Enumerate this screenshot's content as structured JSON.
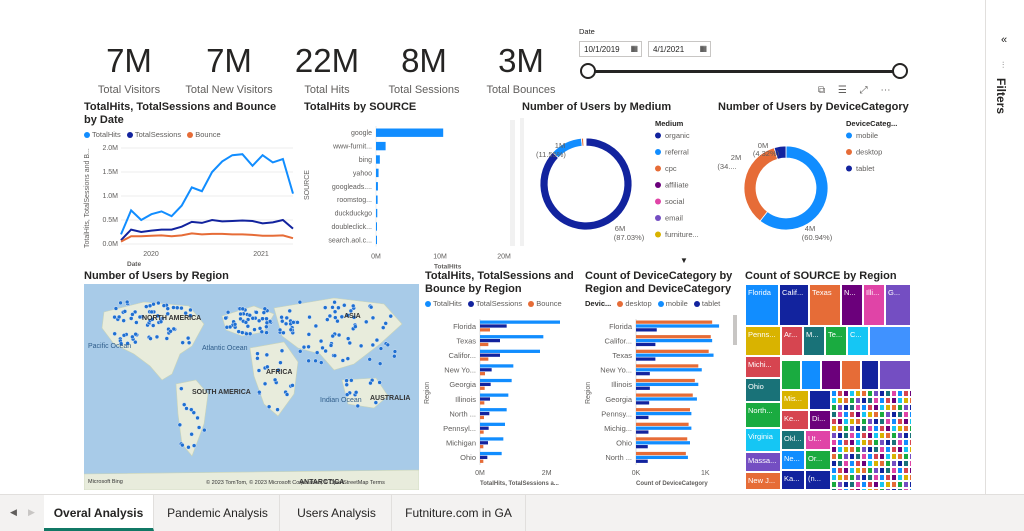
{
  "kpis": [
    {
      "value": "7M",
      "label": "Total Visitors"
    },
    {
      "value": "7M",
      "label": "Total New Visitors"
    },
    {
      "value": "22M",
      "label": "Total Hits"
    },
    {
      "value": "8M",
      "label": "Total Sessions"
    },
    {
      "value": "3M",
      "label": "Total Bounces"
    }
  ],
  "date_slicer": {
    "label": "Date",
    "start": "10/1/2019",
    "end": "4/1/2021"
  },
  "filters_label": "Filters",
  "tabs": [
    "Overal Analysis",
    "Pandemic Analysis",
    "Users Analysis",
    "Futniture.com in GA"
  ],
  "colors": {
    "blue": "#118dff",
    "navy": "#12239e",
    "orange": "#e66c37",
    "purple": "#6b007b",
    "pink": "#e044a7",
    "violet": "#744ec2",
    "gold": "#d9b300",
    "teal": "#197278",
    "green": "#1aab40"
  },
  "chart_data": [
    {
      "id": "hits_sessions_bounce_by_date",
      "type": "line",
      "title": "TotalHits, TotalSessions and Bounce by Date",
      "xlabel": "Date",
      "ylabel": "TotalHits, TotalSessions and B...",
      "yticks": [
        "0.0M",
        "0.5M",
        "1.0M",
        "1.5M",
        "2.0M"
      ],
      "xticks": [
        "2020",
        "2021"
      ],
      "ylim": [
        0,
        2.0
      ],
      "series": [
        {
          "name": "TotalHits",
          "color": "#118dff",
          "values": [
            0.2,
            0.7,
            0.5,
            0.62,
            0.68,
            0.58,
            0.8,
            1.18,
            1.1,
            1.5,
            1.72,
            1.85,
            1.87,
            1.63,
            1.85,
            1.7,
            1.77,
            1.05
          ]
        },
        {
          "name": "TotalSessions",
          "color": "#12239e",
          "values": [
            0.08,
            0.3,
            0.25,
            0.28,
            0.3,
            0.3,
            0.36,
            0.46,
            0.44,
            0.5,
            0.47,
            0.48,
            0.49,
            0.48,
            0.43,
            0.45,
            0.5,
            0.32
          ]
        },
        {
          "name": "Bounce",
          "color": "#e66c37",
          "values": [
            0.05,
            0.16,
            0.16,
            0.17,
            0.18,
            0.16,
            0.18,
            0.22,
            0.2,
            0.21,
            0.21,
            0.2,
            0.2,
            0.19,
            0.17,
            0.17,
            0.18,
            0.12
          ]
        }
      ]
    },
    {
      "id": "hits_by_source",
      "type": "bar",
      "title": "TotalHits by SOURCE",
      "ylabel": "SOURCE",
      "xlabel": "TotalHits",
      "categories": [
        "google",
        "www-furnit...",
        "bing",
        "yahoo",
        "googleads....",
        "roomstog...",
        "duckduckgo",
        "doubleclick...",
        "search.aol.c..."
      ],
      "values": [
        10.5,
        1.5,
        0.6,
        0.4,
        0.3,
        0.25,
        0.2,
        0.15,
        0.1
      ],
      "xticks": [
        "0M",
        "10M",
        "20M"
      ],
      "xlim": [
        0,
        20
      ]
    },
    {
      "id": "users_by_medium",
      "type": "pie",
      "title": "Number of Users by Medium",
      "legend_title": "Medium",
      "labels": [
        "organic",
        "referral",
        "cpc",
        "affiliate",
        "social",
        "email",
        "furniture..."
      ],
      "colors": [
        "#12239e",
        "#118dff",
        "#e66c37",
        "#6b007b",
        "#e044a7",
        "#744ec2",
        "#d9b300"
      ],
      "values": [
        6.0,
        0.78,
        0.05,
        0.02,
        0.02,
        0.01,
        0.01
      ],
      "annotations": [
        {
          "text": "1M",
          "sub": "(11.55%)"
        },
        {
          "text": "6M",
          "sub": "(87.03%)"
        }
      ]
    },
    {
      "id": "users_by_device",
      "type": "pie",
      "title": "Number of Users by DeviceCategory",
      "legend_title": "DeviceCateg...",
      "labels": [
        "mobile",
        "desktop",
        "tablet"
      ],
      "colors": [
        "#118dff",
        "#e66c37",
        "#12239e"
      ],
      "values": [
        4.0,
        2.3,
        0.3
      ],
      "annotations": [
        {
          "text": "0M",
          "sub": "(4.32%)"
        },
        {
          "text": "2M",
          "sub": "(34...."
        },
        {
          "text": "4M",
          "sub": "(60.94%)"
        }
      ]
    },
    {
      "id": "users_by_region_map",
      "type": "map",
      "title": "Number of Users by Region",
      "labels": [
        "NORTH AMERICA",
        "Pacific Ocean",
        "Atlantic Ocean",
        "SOUTH AMERICA",
        "AFRICA",
        "ASIA",
        "Indian Ocean",
        "AUSTRALIA",
        "ANTARCTICA"
      ],
      "attribution": "© 2023 TomTom, © 2023 Microsoft Corporation, © OpenStreetMap  Terms",
      "brand": "Microsoft Bing"
    },
    {
      "id": "hits_sessions_bounce_by_region",
      "type": "bar",
      "title": "TotalHits, TotalSessions and Bounce by Region",
      "series_names": [
        "TotalHits",
        "TotalSessions",
        "Bounce"
      ],
      "ylabel": "Region",
      "xlabel": "TotalHits, TotalSessions a...",
      "categories": [
        "Florida",
        "Texas",
        "Califor...",
        "New Yo...",
        "Georgia",
        "Illinois",
        "North ...",
        "Pennsyl...",
        "Michigan",
        "Ohio"
      ],
      "series": [
        {
          "name": "TotalHits",
          "values": [
            2.4,
            1.9,
            1.8,
            1.0,
            0.95,
            0.85,
            0.8,
            0.75,
            0.7,
            0.65
          ]
        },
        {
          "name": "TotalSessions",
          "values": [
            0.8,
            0.6,
            0.6,
            0.35,
            0.32,
            0.3,
            0.28,
            0.26,
            0.24,
            0.22
          ]
        },
        {
          "name": "Bounce",
          "values": [
            0.3,
            0.25,
            0.25,
            0.15,
            0.14,
            0.13,
            0.12,
            0.11,
            0.1,
            0.1
          ]
        }
      ],
      "xticks": [
        "0M",
        "2M"
      ],
      "xlim": [
        0,
        2.7
      ]
    },
    {
      "id": "device_by_region",
      "type": "bar",
      "title": "Count of DeviceCategory by Region and DeviceCategory",
      "legend_title": "Devic...",
      "series_names": [
        "desktop",
        "mobile",
        "tablet"
      ],
      "ylabel": "Region",
      "xlabel": "Count of DeviceCategory",
      "categories": [
        "Florida",
        "Califor...",
        "Texas",
        "New Yo...",
        "Illinois",
        "Georgia",
        "Pennsy...",
        "Michig...",
        "Ohio",
        "North ..."
      ],
      "series": [
        {
          "name": "desktop",
          "values": [
            1.1,
            1.08,
            1.05,
            0.9,
            0.85,
            0.82,
            0.78,
            0.76,
            0.74,
            0.72
          ]
        },
        {
          "name": "mobile",
          "values": [
            1.2,
            1.1,
            1.12,
            0.95,
            0.9,
            0.88,
            0.8,
            0.8,
            0.78,
            0.75
          ]
        },
        {
          "name": "tablet",
          "values": [
            0.3,
            0.28,
            0.28,
            0.2,
            0.2,
            0.19,
            0.18,
            0.18,
            0.17,
            0.17
          ]
        }
      ],
      "xticks": [
        "0K",
        "1K"
      ],
      "xlim": [
        0,
        1.3
      ]
    },
    {
      "id": "source_by_region",
      "type": "treemap",
      "title": "Count of SOURCE by Region",
      "labels": [
        "Florida",
        "Calif...",
        "Texas",
        "N...",
        "Illi...",
        "G...",
        "Penns...",
        "Ar...",
        "M...",
        "Te...",
        "C...",
        "Michi...",
        "Ohio",
        "North...",
        "Mis...",
        "Ke...",
        "Di...",
        "Virginia",
        "Okl...",
        "Ut...",
        "Or...",
        "(n...",
        "Massa...",
        "Ne...",
        "New J...",
        "Ka..."
      ]
    }
  ]
}
